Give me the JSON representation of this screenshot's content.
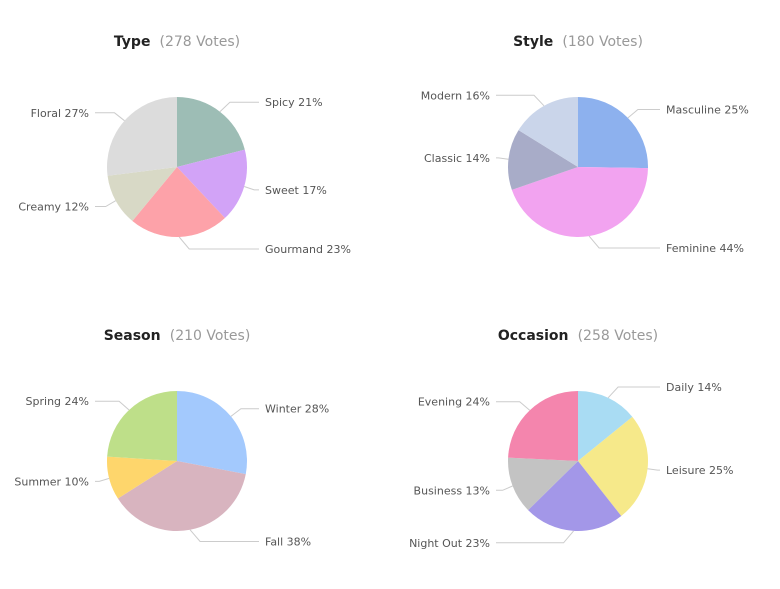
{
  "chart_data": [
    {
      "type": "pie",
      "title": "Type",
      "subtitle": "(278 Votes)",
      "slices": [
        {
          "label": "Spicy",
          "value": 21,
          "display": "Spicy 21%",
          "color": "#9dbdb5"
        },
        {
          "label": "Sweet",
          "value": 17,
          "display": "Sweet 17%",
          "color": "#d2a3f7"
        },
        {
          "label": "Gourmand",
          "value": 23,
          "display": "Gourmand 23%",
          "color": "#fda2a9"
        },
        {
          "label": "Creamy",
          "value": 12,
          "display": "Creamy 12%",
          "color": "#d8d9c6"
        },
        {
          "label": "Floral",
          "value": 27,
          "display": "Floral 27%",
          "color": "#dcdcdc"
        }
      ]
    },
    {
      "type": "pie",
      "title": "Style",
      "subtitle": "(180 Votes)",
      "slices": [
        {
          "label": "Masculine",
          "value": 25,
          "display": "Masculine 25%",
          "color": "#8db1ee"
        },
        {
          "label": "Feminine",
          "value": 44,
          "display": "Feminine 44%",
          "color": "#f2a3f0"
        },
        {
          "label": "Classic",
          "value": 14,
          "display": "Classic 14%",
          "color": "#a8acc8"
        },
        {
          "label": "Modern",
          "value": 16,
          "display": "Modern 16%",
          "color": "#cad5ea"
        }
      ]
    },
    {
      "type": "pie",
      "title": "Season",
      "subtitle": "(210 Votes)",
      "slices": [
        {
          "label": "Winter",
          "value": 28,
          "display": "Winter 28%",
          "color": "#a3c9fd"
        },
        {
          "label": "Fall",
          "value": 38,
          "display": "Fall 38%",
          "color": "#d8b4bf"
        },
        {
          "label": "Summer",
          "value": 10,
          "display": "Summer 10%",
          "color": "#fed66c"
        },
        {
          "label": "Spring",
          "value": 24,
          "display": "Spring 24%",
          "color": "#bedf89"
        }
      ]
    },
    {
      "type": "pie",
      "title": "Occasion",
      "subtitle": "(258 Votes)",
      "slices": [
        {
          "label": "Daily",
          "value": 14,
          "display": "Daily 14%",
          "color": "#a9dcf3"
        },
        {
          "label": "Leisure",
          "value": 25,
          "display": "Leisure 25%",
          "color": "#f6e98a"
        },
        {
          "label": "Night Out",
          "value": 23,
          "display": "Night Out 23%",
          "color": "#a397e8"
        },
        {
          "label": "Business",
          "value": 13,
          "display": "Business 13%",
          "color": "#c3c3c3"
        },
        {
          "label": "Evening",
          "value": 24,
          "display": "Evening 24%",
          "color": "#f485ad"
        }
      ]
    }
  ]
}
